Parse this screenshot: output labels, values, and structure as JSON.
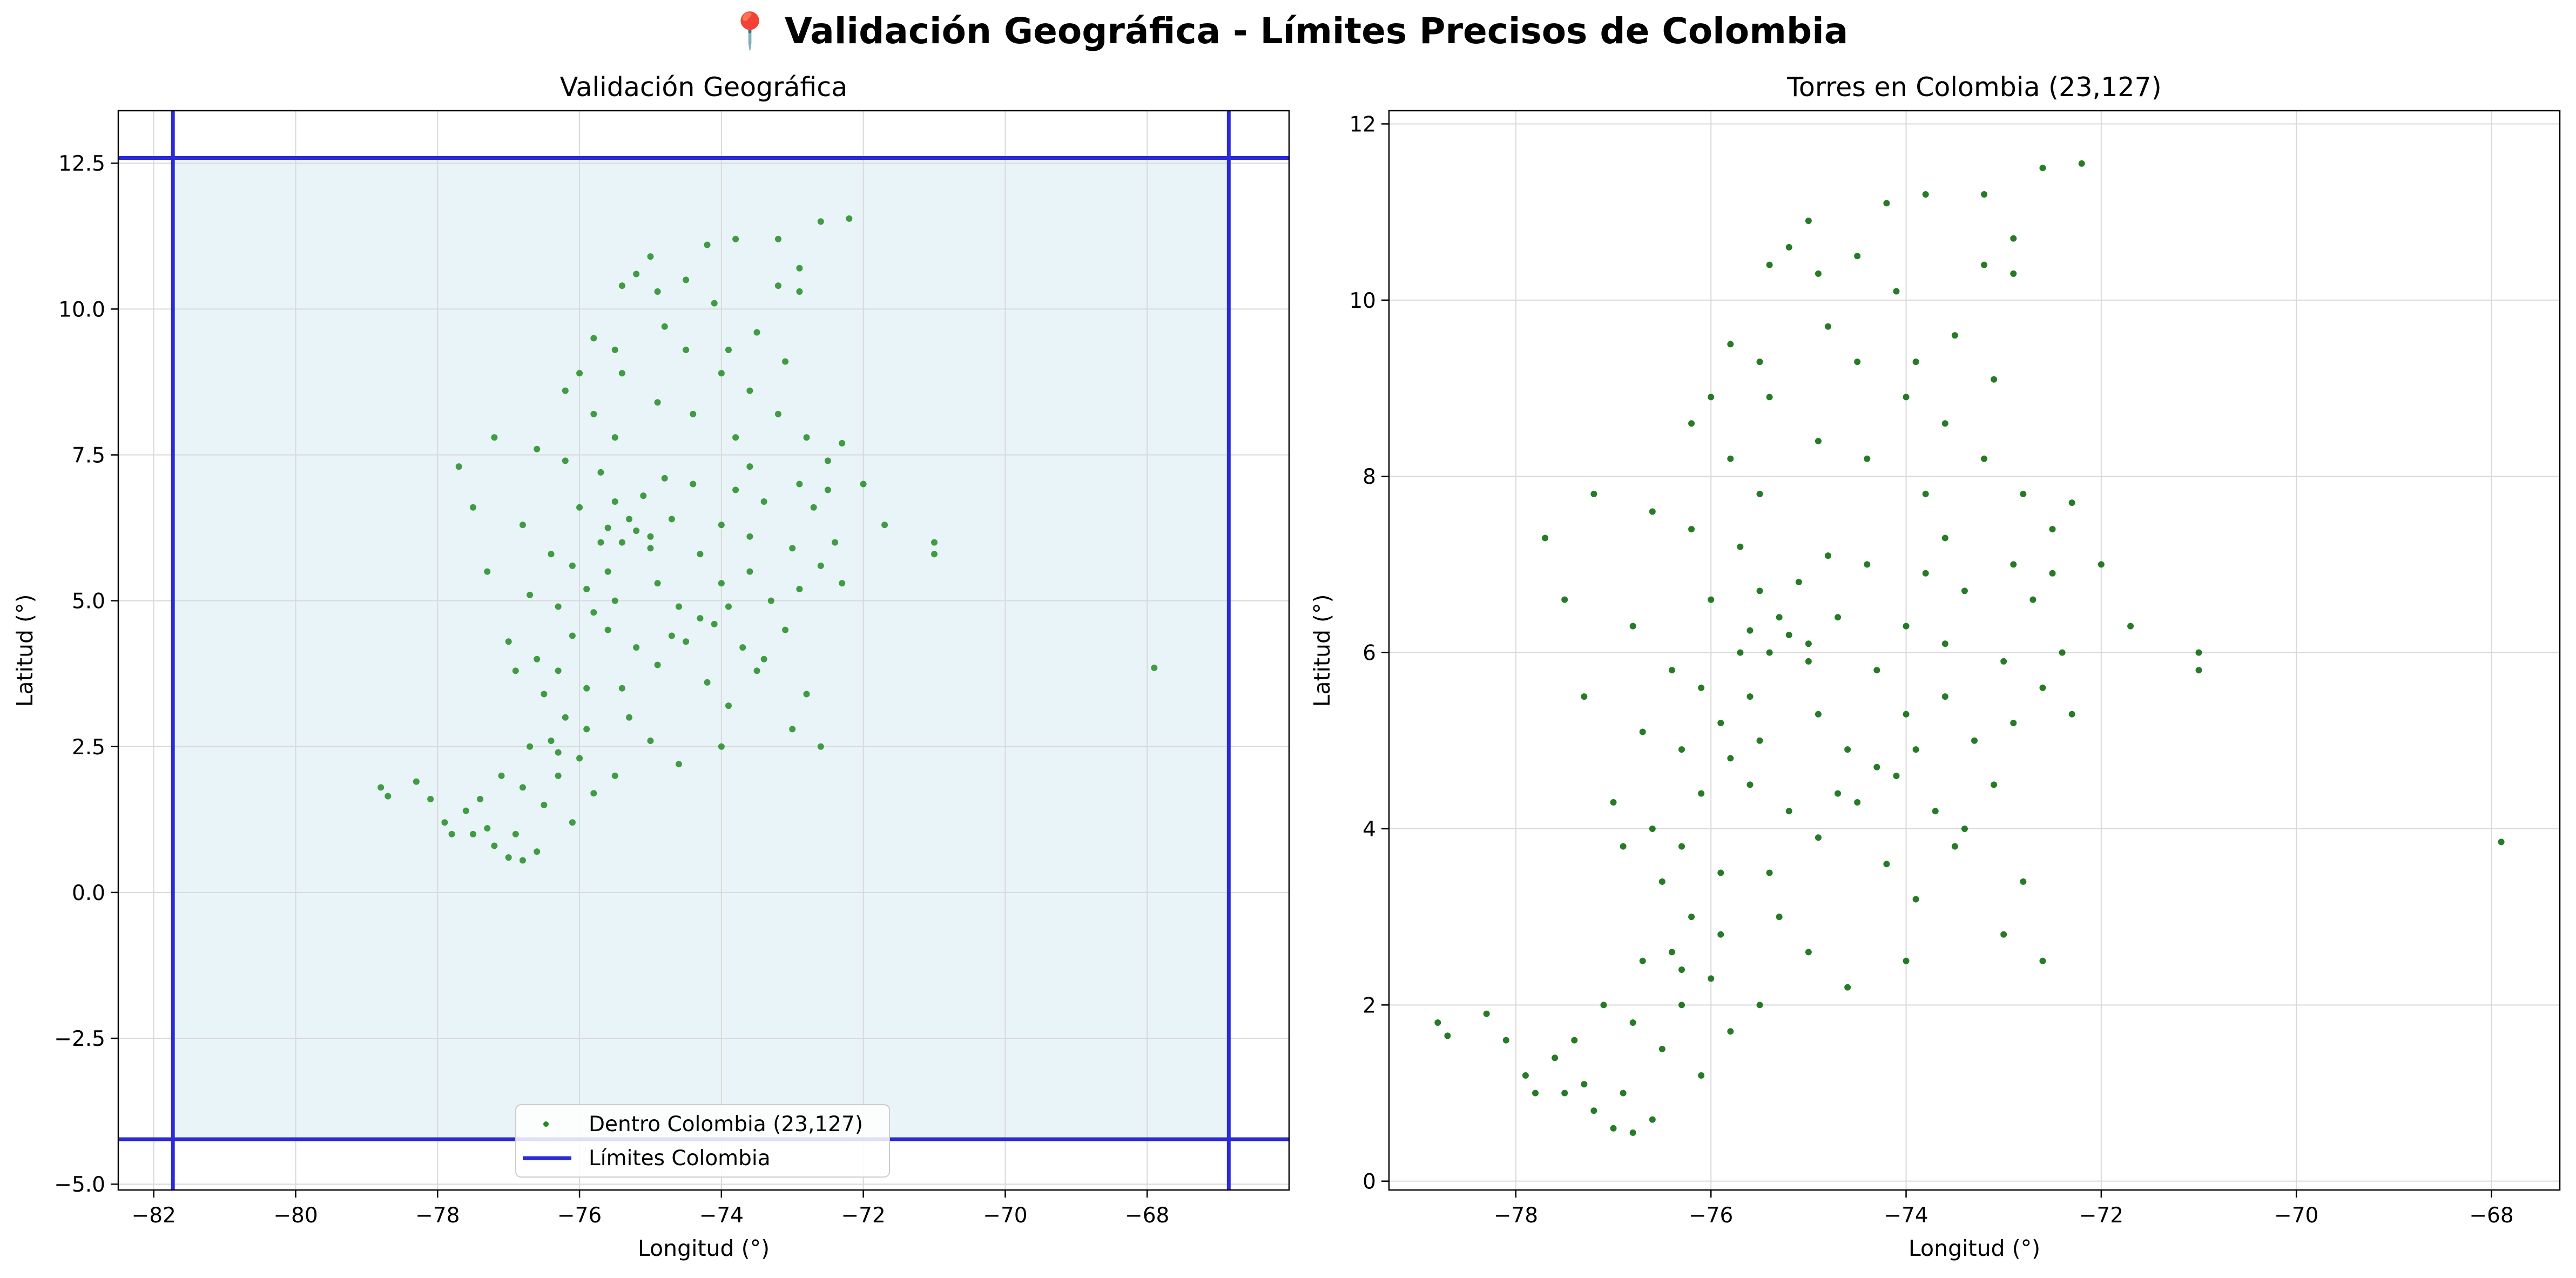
{
  "figure": {
    "suptitle": "📍 Validación Geográfica - Límites Precisos de Colombia"
  },
  "colors": {
    "inside_points_left": "#228B22",
    "inside_points_right": "#006400",
    "bounds_line": "#2a2ad8",
    "bounds_fill": "#e8f4f8",
    "grid": "#d9d9d9",
    "axes": "#000000"
  },
  "chart_data": [
    {
      "type": "scatter",
      "title": "Validación Geográfica",
      "xlabel": "Longitud (°)",
      "ylabel": "Latitud (°)",
      "xlim": [
        -82.5,
        -66.0
      ],
      "ylim": [
        -5.1,
        13.4
      ],
      "grid": true,
      "legend_placement": "lower center",
      "xticks": [
        -82,
        -80,
        -78,
        -76,
        -74,
        -72,
        -70,
        -68
      ],
      "yticks": [
        -5.0,
        -2.5,
        0.0,
        2.5,
        5.0,
        7.5,
        10.0,
        12.5
      ],
      "xtick_labels": [
        "−82",
        "−80",
        "−78",
        "−76",
        "−74",
        "−72",
        "−70",
        "−68"
      ],
      "ytick_labels": [
        "−5.0",
        "−2.5",
        "0.0",
        "2.5",
        "5.0",
        "7.5",
        "10.0",
        "12.5"
      ],
      "bounds": {
        "lon_min": -81.73,
        "lon_max": -66.85,
        "lat_min": -4.23,
        "lat_max": 12.59
      },
      "series": [
        {
          "name": "Dentro Colombia (23,127)",
          "kind": "points"
        },
        {
          "name": "Límites Colombia",
          "kind": "lines"
        }
      ]
    },
    {
      "type": "scatter",
      "title": "Torres en Colombia (23,127)",
      "xlabel": "Longitud (°)",
      "ylabel": "Latitud (°)",
      "xlim": [
        -79.3,
        -67.3
      ],
      "ylim": [
        -0.1,
        12.15
      ],
      "grid": true,
      "xticks": [
        -78,
        -76,
        -74,
        -72,
        -70,
        -68
      ],
      "yticks": [
        0,
        2,
        4,
        6,
        8,
        10,
        12
      ],
      "xtick_labels": [
        "−78",
        "−76",
        "−74",
        "−72",
        "−70",
        "−68"
      ],
      "ytick_labels": [
        "0",
        "2",
        "4",
        "6",
        "8",
        "10",
        "12"
      ]
    }
  ],
  "points": [
    [
      -78.8,
      1.8
    ],
    [
      -78.7,
      1.65
    ],
    [
      -78.3,
      1.9
    ],
    [
      -78.1,
      1.6
    ],
    [
      -77.9,
      1.2
    ],
    [
      -77.5,
      1.0
    ],
    [
      -77.2,
      0.8
    ],
    [
      -77.0,
      0.6
    ],
    [
      -76.8,
      0.55
    ],
    [
      -76.6,
      0.7
    ],
    [
      -77.6,
      1.4
    ],
    [
      -77.3,
      1.1
    ],
    [
      -76.9,
      1.0
    ],
    [
      -76.5,
      1.5
    ],
    [
      -76.3,
      2.0
    ],
    [
      -76.0,
      2.3
    ],
    [
      -77.1,
      2.0
    ],
    [
      -76.7,
      2.5
    ],
    [
      -76.4,
      2.6
    ],
    [
      -76.2,
      3.0
    ],
    [
      -76.5,
      3.4
    ],
    [
      -76.3,
      3.8
    ],
    [
      -76.6,
      4.0
    ],
    [
      -76.1,
      4.4
    ],
    [
      -75.8,
      4.8
    ],
    [
      -75.6,
      4.5
    ],
    [
      -75.5,
      5.0
    ],
    [
      -75.6,
      5.5
    ],
    [
      -75.4,
      6.0
    ],
    [
      -75.6,
      6.25
    ],
    [
      -75.3,
      6.4
    ],
    [
      -75.1,
      6.8
    ],
    [
      -74.8,
      7.1
    ],
    [
      -75.7,
      7.2
    ],
    [
      -76.2,
      7.4
    ],
    [
      -76.6,
      7.6
    ],
    [
      -77.2,
      7.8
    ],
    [
      -77.7,
      7.3
    ],
    [
      -77.5,
      6.6
    ],
    [
      -76.8,
      6.3
    ],
    [
      -76.1,
      5.6
    ],
    [
      -74.9,
      5.3
    ],
    [
      -74.6,
      4.9
    ],
    [
      -74.1,
      4.6
    ],
    [
      -73.7,
      4.2
    ],
    [
      -73.4,
      4.0
    ],
    [
      -73.1,
      4.5
    ],
    [
      -72.9,
      5.2
    ],
    [
      -72.6,
      5.6
    ],
    [
      -72.4,
      6.0
    ],
    [
      -72.7,
      6.6
    ],
    [
      -72.9,
      7.0
    ],
    [
      -72.5,
      7.4
    ],
    [
      -72.8,
      7.8
    ],
    [
      -73.2,
      8.2
    ],
    [
      -73.6,
      8.6
    ],
    [
      -74.0,
      8.9
    ],
    [
      -74.5,
      9.3
    ],
    [
      -74.8,
      9.7
    ],
    [
      -74.9,
      10.3
    ],
    [
      -75.2,
      10.6
    ],
    [
      -75.0,
      10.9
    ],
    [
      -74.2,
      11.1
    ],
    [
      -73.8,
      11.2
    ],
    [
      -73.2,
      10.4
    ],
    [
      -72.9,
      10.7
    ],
    [
      -72.6,
      11.5
    ],
    [
      -72.2,
      11.55
    ],
    [
      -72.0,
      7.0
    ],
    [
      -71.7,
      6.3
    ],
    [
      -71.0,
      6.0
    ],
    [
      -71.0,
      5.8
    ],
    [
      -74.3,
      5.8
    ],
    [
      -74.0,
      6.3
    ],
    [
      -73.8,
      6.9
    ],
    [
      -73.6,
      7.3
    ],
    [
      -74.4,
      7.0
    ],
    [
      -74.7,
      6.4
    ],
    [
      -75.0,
      5.9
    ],
    [
      -75.9,
      3.5
    ],
    [
      -75.3,
      3.0
    ],
    [
      -75.0,
      2.6
    ],
    [
      -74.6,
      2.2
    ],
    [
      -75.5,
      2.0
    ],
    [
      -75.8,
      1.7
    ],
    [
      -76.1,
      1.2
    ],
    [
      -74.2,
      3.6
    ],
    [
      -73.9,
      3.2
    ],
    [
      -73.5,
      3.8
    ],
    [
      -72.6,
      2.5
    ],
    [
      -73.0,
      2.8
    ],
    [
      -72.8,
      3.4
    ],
    [
      -76.9,
      3.8
    ],
    [
      -77.0,
      4.3
    ],
    [
      -77.3,
      5.5
    ],
    [
      -76.7,
      5.1
    ],
    [
      -76.4,
      5.8
    ],
    [
      -75.2,
      4.2
    ],
    [
      -74.9,
      3.9
    ],
    [
      -74.5,
      4.3
    ],
    [
      -73.3,
      5.0
    ],
    [
      -73.0,
      5.9
    ],
    [
      -73.4,
      6.7
    ],
    [
      -72.3,
      7.7
    ],
    [
      -75.5,
      7.8
    ],
    [
      -75.8,
      8.2
    ],
    [
      -76.2,
      8.6
    ],
    [
      -75.4,
      8.9
    ],
    [
      -74.9,
      8.4
    ],
    [
      -75.5,
      9.3
    ],
    [
      -75.8,
      9.5
    ],
    [
      -76.0,
      8.9
    ],
    [
      -74.1,
      10.1
    ],
    [
      -73.5,
      9.6
    ],
    [
      -73.1,
      9.1
    ],
    [
      -74.7,
      4.4
    ],
    [
      -74.3,
      4.7
    ],
    [
      -73.9,
      4.9
    ],
    [
      -75.7,
      6.0
    ],
    [
      -75.2,
      6.2
    ],
    [
      -75.0,
      6.1
    ],
    [
      -75.9,
      5.2
    ],
    [
      -76.3,
      4.9
    ],
    [
      -76.0,
      6.6
    ],
    [
      -75.5,
      6.7
    ],
    [
      -74.0,
      5.3
    ],
    [
      -73.6,
      5.5
    ],
    [
      -73.8,
      7.8
    ],
    [
      -76.3,
      2.4
    ],
    [
      -76.8,
      1.8
    ],
    [
      -77.4,
      1.6
    ],
    [
      -77.8,
      1.0
    ],
    [
      -75.9,
      2.8
    ],
    [
      -75.4,
      3.5
    ],
    [
      -74.0,
      2.5
    ],
    [
      -72.3,
      5.3
    ],
    [
      -73.6,
      6.1
    ],
    [
      -72.5,
      6.9
    ],
    [
      -74.4,
      8.2
    ],
    [
      -73.9,
      9.3
    ],
    [
      -74.5,
      10.5
    ],
    [
      -75.4,
      10.4
    ],
    [
      -72.9,
      10.3
    ],
    [
      -73.2,
      11.2
    ],
    [
      -67.9,
      3.85
    ]
  ]
}
